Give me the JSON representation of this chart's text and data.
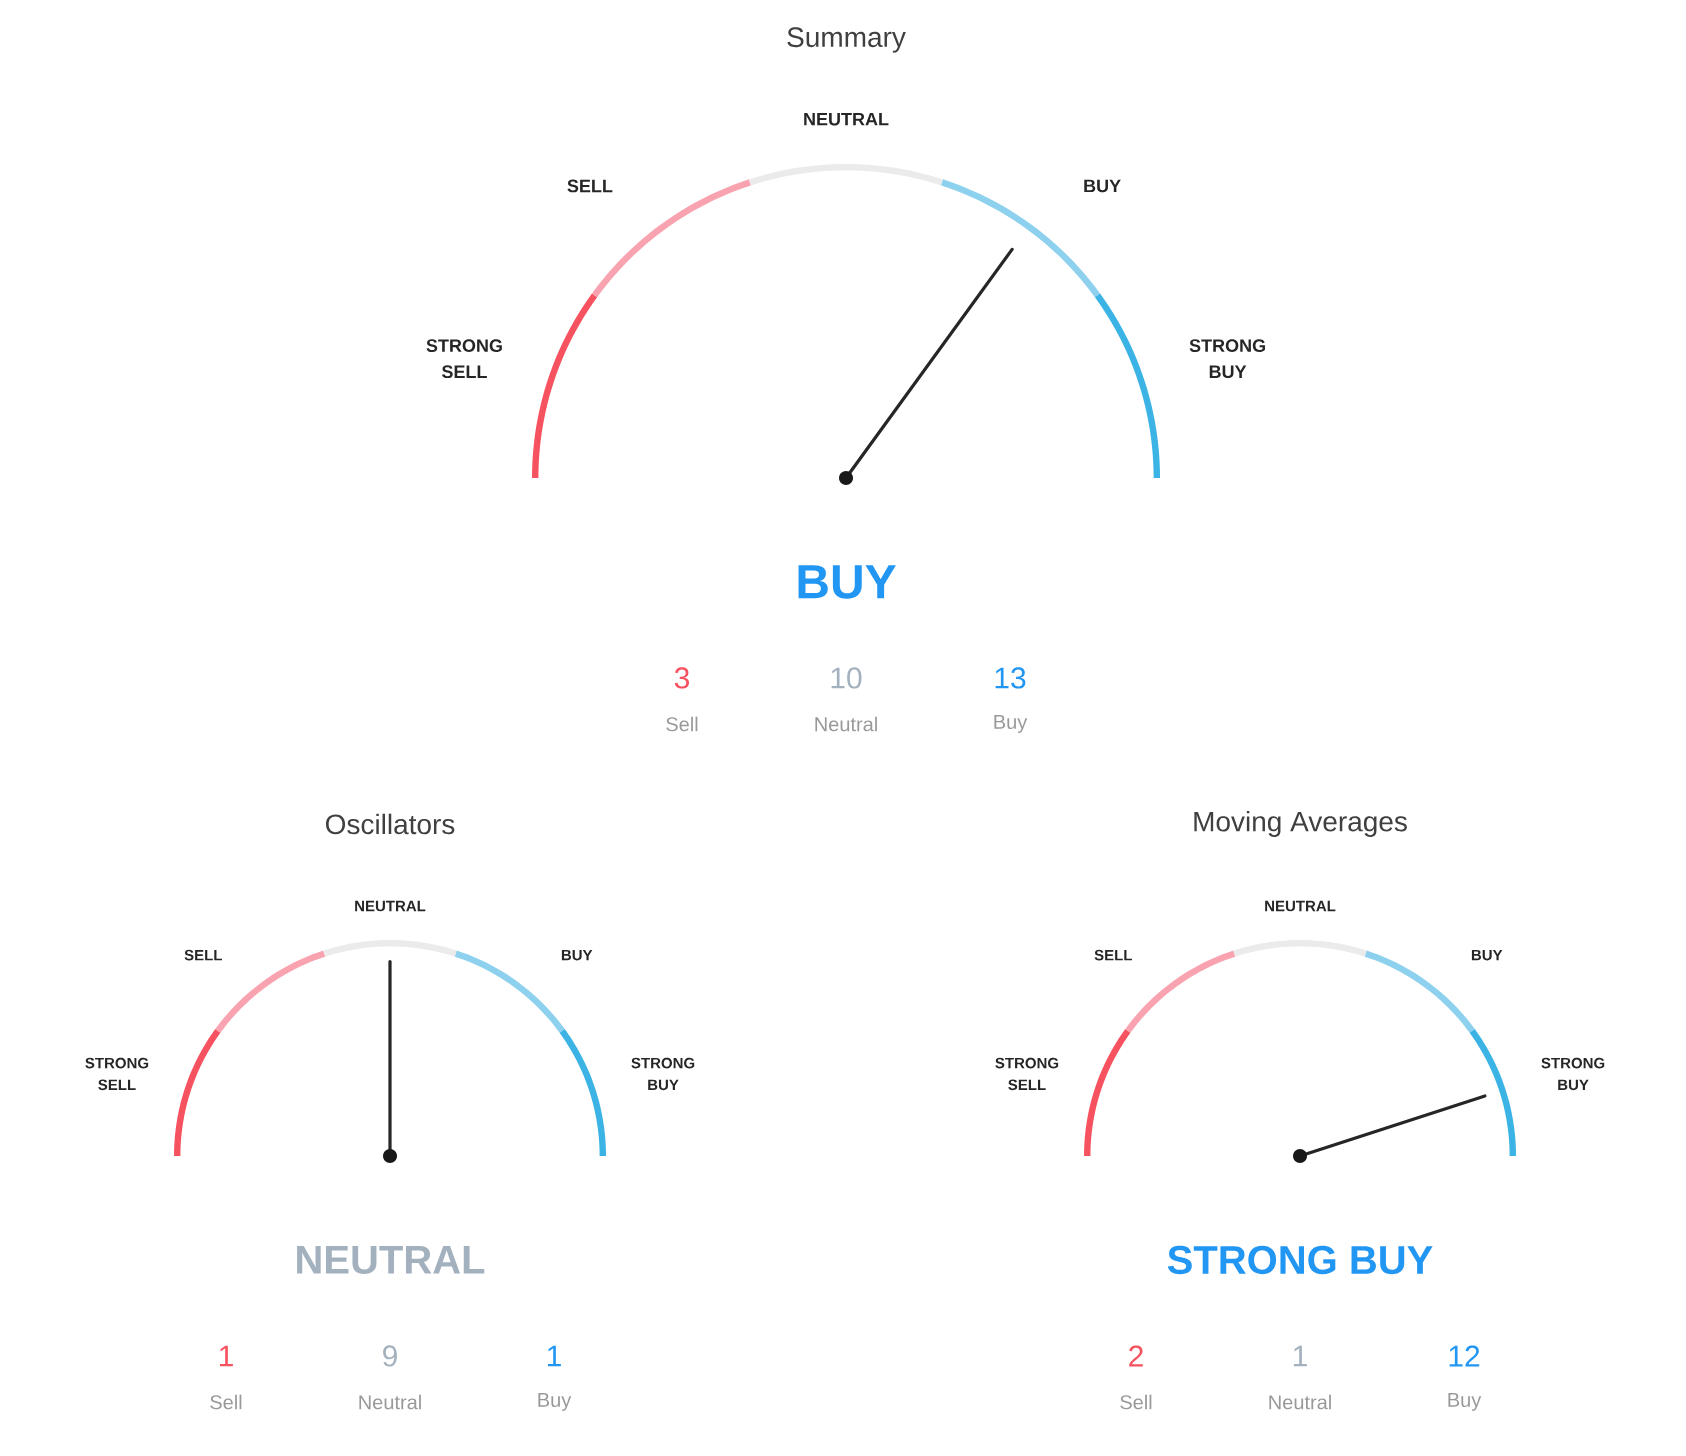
{
  "chart_data": [
    {
      "type": "donut",
      "title": "Summary",
      "subtitle": "BUY",
      "categories": [
        "STRONG SELL",
        "SELL",
        "NEUTRAL",
        "BUY",
        "STRONG BUY"
      ],
      "values": [
        20,
        20,
        20,
        20,
        20
      ],
      "colors": [
        "#f7525f",
        "#f9a3b0",
        "#ebebeb",
        "#8ed1ee",
        "#3bb3e4"
      ],
      "needle": "BUY",
      "annotations": [
        "3",
        "Sell",
        "10",
        "Neutral",
        "13",
        "Buy"
      ]
    },
    {
      "type": "donut",
      "title": "Oscillators",
      "subtitle": "NEUTRAL",
      "categories": [
        "STRONG SELL",
        "SELL",
        "NEUTRAL",
        "BUY",
        "STRONG BUY"
      ],
      "values": [
        20,
        20,
        20,
        20,
        20
      ],
      "colors": [
        "#f7525f",
        "#f9a3b0",
        "#ebebeb",
        "#8ed1ee",
        "#3bb3e4"
      ],
      "needle": "NEUTRAL",
      "annotations": [
        "1",
        "Sell",
        "9",
        "Neutral",
        "1",
        "Buy"
      ]
    },
    {
      "type": "donut",
      "title": "Moving Averages",
      "subtitle": "STRONG BUY",
      "categories": [
        "STRONG SELL",
        "SELL",
        "NEUTRAL",
        "BUY",
        "STRONG BUY"
      ],
      "values": [
        20,
        20,
        20,
        20,
        20
      ],
      "colors": [
        "#f7525f",
        "#f9a3b0",
        "#ebebeb",
        "#8ed1ee",
        "#3bb3e4"
      ],
      "needle": "STRONG BUY",
      "annotations": [
        "2",
        "Sell",
        "1",
        "Neutral",
        "12",
        "Buy"
      ]
    }
  ]
}
